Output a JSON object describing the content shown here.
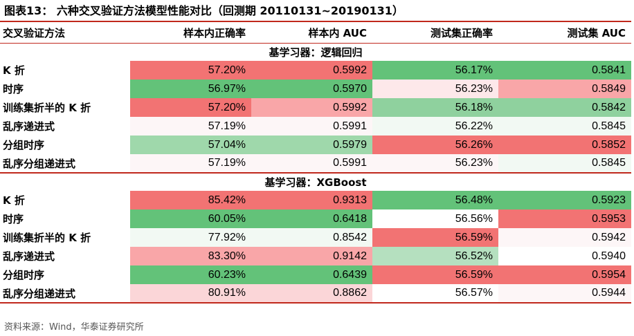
{
  "title": "图表13：  六种交叉验证方法模型性能对比（回测期 20110131~20190131）",
  "headers": [
    "交叉验证方法",
    "样本内正确率",
    "样本内 AUC",
    "测试集正确率",
    "测试集 AUC"
  ],
  "groups": [
    {
      "label": "基学习器：逻辑回归",
      "rows": [
        {
          "method": "K 折",
          "values": [
            "57.20%",
            "0.5992",
            "56.17%",
            "0.5841"
          ],
          "colors": [
            "#f27373",
            "#f27373",
            "#63c279",
            "#63c279"
          ]
        },
        {
          "method": "时序",
          "values": [
            "56.97%",
            "0.5970",
            "56.23%",
            "0.5849"
          ],
          "colors": [
            "#63c279",
            "#63c279",
            "#fde8ea",
            "#f9a6a8"
          ]
        },
        {
          "method": "训练集折半的 K 折",
          "values": [
            "57.20%",
            "0.5992",
            "56.18%",
            "0.5842"
          ],
          "colors": [
            "#f27373",
            "#f9a6a8",
            "#8fd19e",
            "#8fd19e"
          ]
        },
        {
          "method": "乱序递进式",
          "values": [
            "57.19%",
            "0.5991",
            "56.22%",
            "0.5845"
          ],
          "colors": [
            "#fdf6f7",
            "#fdf6f7",
            "#f2f9f3",
            "#f2f9f3"
          ]
        },
        {
          "method": "分组时序",
          "values": [
            "57.04%",
            "0.5979",
            "56.26%",
            "0.5852"
          ],
          "colors": [
            "#9fd8ab",
            "#9fd8ab",
            "#f27373",
            "#f27373"
          ]
        },
        {
          "method": "乱序分组递进式",
          "values": [
            "57.19%",
            "0.5991",
            "56.23%",
            "0.5845"
          ],
          "colors": [
            "#fdf6f7",
            "#fdf6f7",
            "#fdf6f7",
            "#f2f9f3"
          ]
        }
      ]
    },
    {
      "label": "基学习器：XGBoost",
      "rows": [
        {
          "method": "K 折",
          "values": [
            "85.42%",
            "0.9313",
            "56.48%",
            "0.5923"
          ],
          "colors": [
            "#f27373",
            "#f27373",
            "#63c279",
            "#63c279"
          ]
        },
        {
          "method": "时序",
          "values": [
            "60.05%",
            "0.6418",
            "56.56%",
            "0.5953"
          ],
          "colors": [
            "#63c279",
            "#63c279",
            "#ffffff",
            "#f27373"
          ]
        },
        {
          "method": "训练集折半的 K 折",
          "values": [
            "77.92%",
            "0.8542",
            "56.59%",
            "0.5942"
          ],
          "colors": [
            "#f2f9f3",
            "#f2f9f3",
            "#f27373",
            "#fdf6f7"
          ]
        },
        {
          "method": "乱序递进式",
          "values": [
            "83.30%",
            "0.9142",
            "56.52%",
            "0.5940"
          ],
          "colors": [
            "#f9a6a8",
            "#f9a6a8",
            "#b5e0bf",
            "#ffffff"
          ]
        },
        {
          "method": "分组时序",
          "values": [
            "60.23%",
            "0.6439",
            "56.59%",
            "0.5954"
          ],
          "colors": [
            "#63c279",
            "#63c279",
            "#f27373",
            "#f27373"
          ]
        },
        {
          "method": "乱序分组递进式",
          "values": [
            "80.91%",
            "0.8862",
            "56.57%",
            "0.5944"
          ],
          "colors": [
            "#fbd6d8",
            "#fbd6d8",
            "#ffffff",
            "#fdf6f7"
          ]
        }
      ]
    }
  ],
  "footer": "资料来源：Wind，华泰证券研究所"
}
